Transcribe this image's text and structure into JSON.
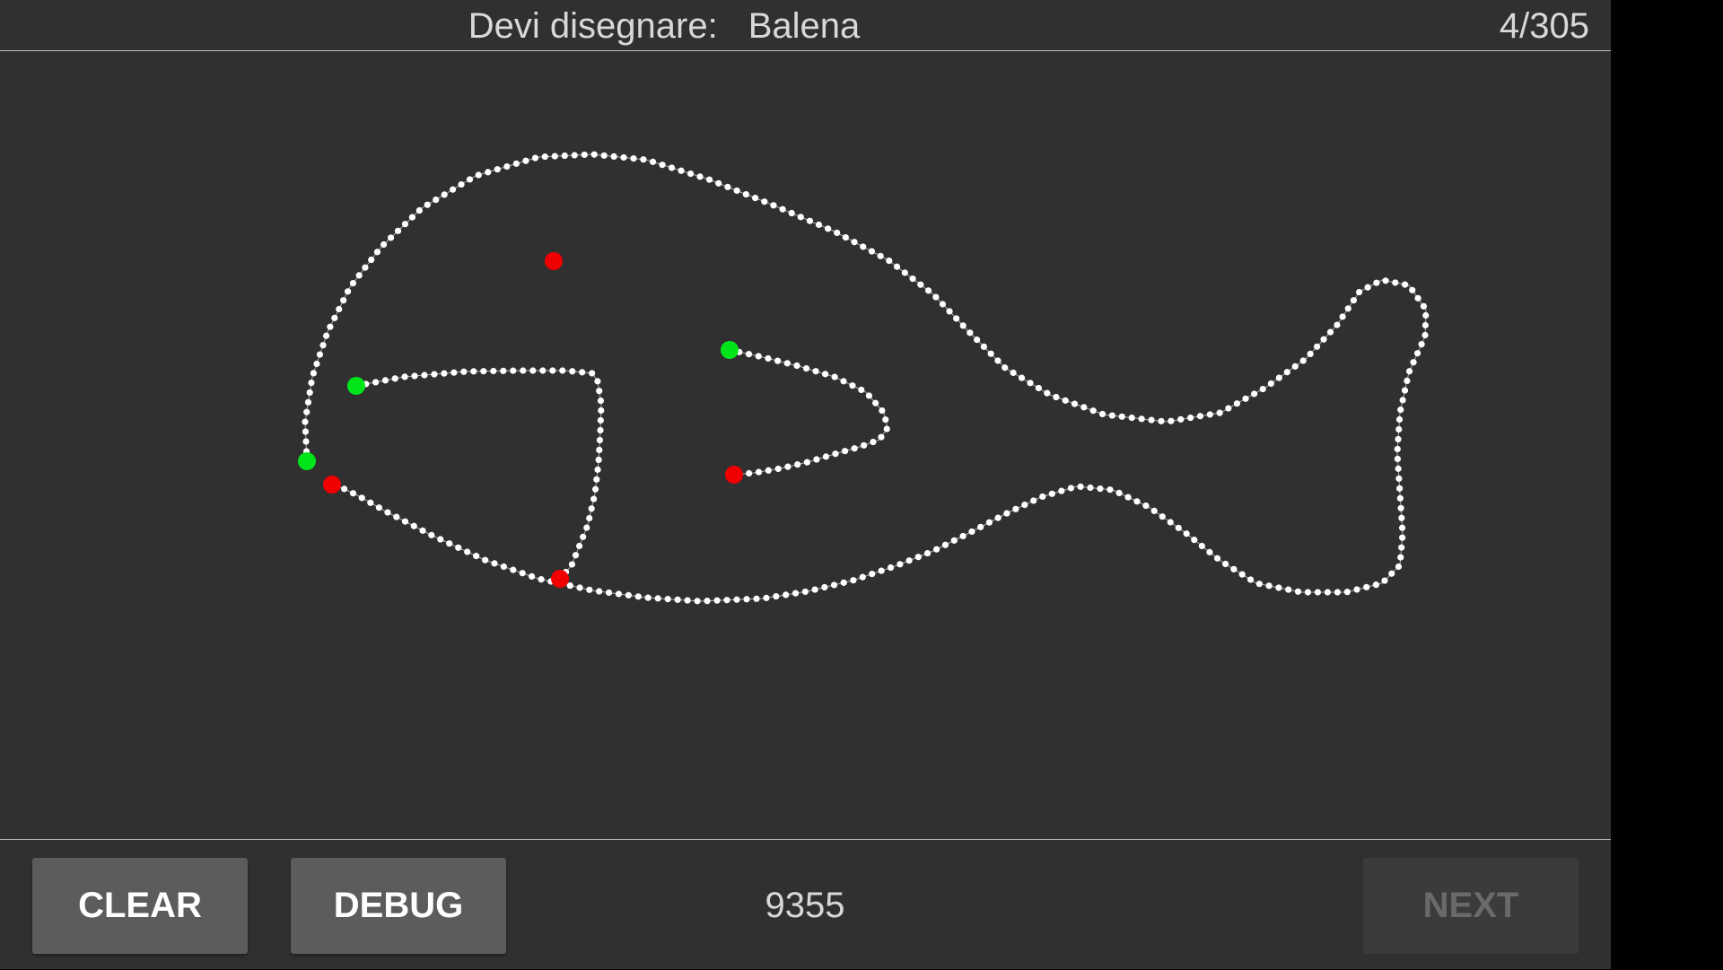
{
  "header": {
    "prompt_label": "Devi disegnare:",
    "target_word": "Balena",
    "progress": "4/305"
  },
  "footer": {
    "clear_label": "CLEAR",
    "debug_label": "DEBUG",
    "score": "9355",
    "next_label": "NEXT",
    "next_enabled": false
  },
  "colors": {
    "background": "#303030",
    "stroke": "#ffffff",
    "stroke_start": "#00e51a",
    "stroke_end": "#f00000"
  },
  "drawing": {
    "strokes": [
      {
        "name": "body-outline",
        "start_marker": true,
        "end_marker": true
      },
      {
        "name": "mouth",
        "start_marker": true,
        "end_marker": true
      },
      {
        "name": "fin",
        "start_marker": true,
        "end_marker": true
      },
      {
        "name": "eye",
        "start_marker": false,
        "end_marker": true
      }
    ]
  }
}
